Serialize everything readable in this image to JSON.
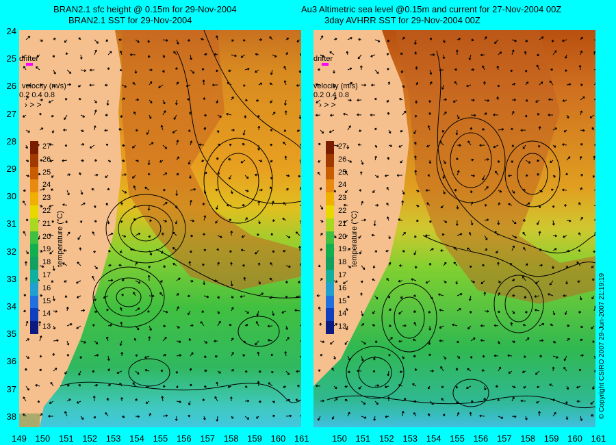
{
  "left_panel": {
    "title_line1": "BRAN2.1 sfc height @ 0.15m for 29-Nov-2004",
    "title_line2": "BRAN2.1 SST for 29-Nov-2004",
    "drifter_label": "drifter",
    "velocity_label": "velocity (m/s)",
    "velocity_scale": "0.2 0.4 0.8"
  },
  "right_panel": {
    "title_line1": "Au3 Altimetric sea level  @0.15m and current for 27-Nov-2004 00Z",
    "title_line2": "3day AVHRR SST for 29-Nov-2004 00Z",
    "drifter_label": "drifter",
    "velocity_label": "velocity (m/s)",
    "velocity_scale": "0.2 0.4 0.8"
  },
  "y_ticks": [
    "24",
    "25",
    "26",
    "27",
    "28",
    "29",
    "30",
    "31",
    "32",
    "33",
    "34",
    "35",
    "36",
    "37",
    "38"
  ],
  "x_ticks_left": [
    "149",
    "150",
    "151",
    "152",
    "153",
    "154",
    "155",
    "156",
    "157",
    "158",
    "159",
    "160",
    "161"
  ],
  "x_ticks_right": [
    "150",
    "151",
    "152",
    "153",
    "154",
    "155",
    "156",
    "157",
    "158",
    "159",
    "160",
    "161"
  ],
  "colorbar": {
    "title": "temperature (°C)",
    "ticks": [
      "27",
      "26",
      "25",
      "24",
      "23",
      "22",
      "21",
      "20",
      "19",
      "18",
      "17",
      "16",
      "15",
      "14",
      "13"
    ],
    "colors": [
      "#7a1c00",
      "#a03a00",
      "#c85c00",
      "#e88a10",
      "#f0b000",
      "#e8d800",
      "#a8d820",
      "#40c040",
      "#10b050",
      "#10a060",
      "#10b0a0",
      "#20a0d0",
      "#2070e0",
      "#1040c0",
      "#0a1a80"
    ]
  },
  "copyright": "© Copyright CSIRO 2007    29-Jun-2007 21:19:19",
  "colors": {
    "background": "#00ffff",
    "land": "#f6c08e",
    "drifter": "#ff00ff"
  }
}
